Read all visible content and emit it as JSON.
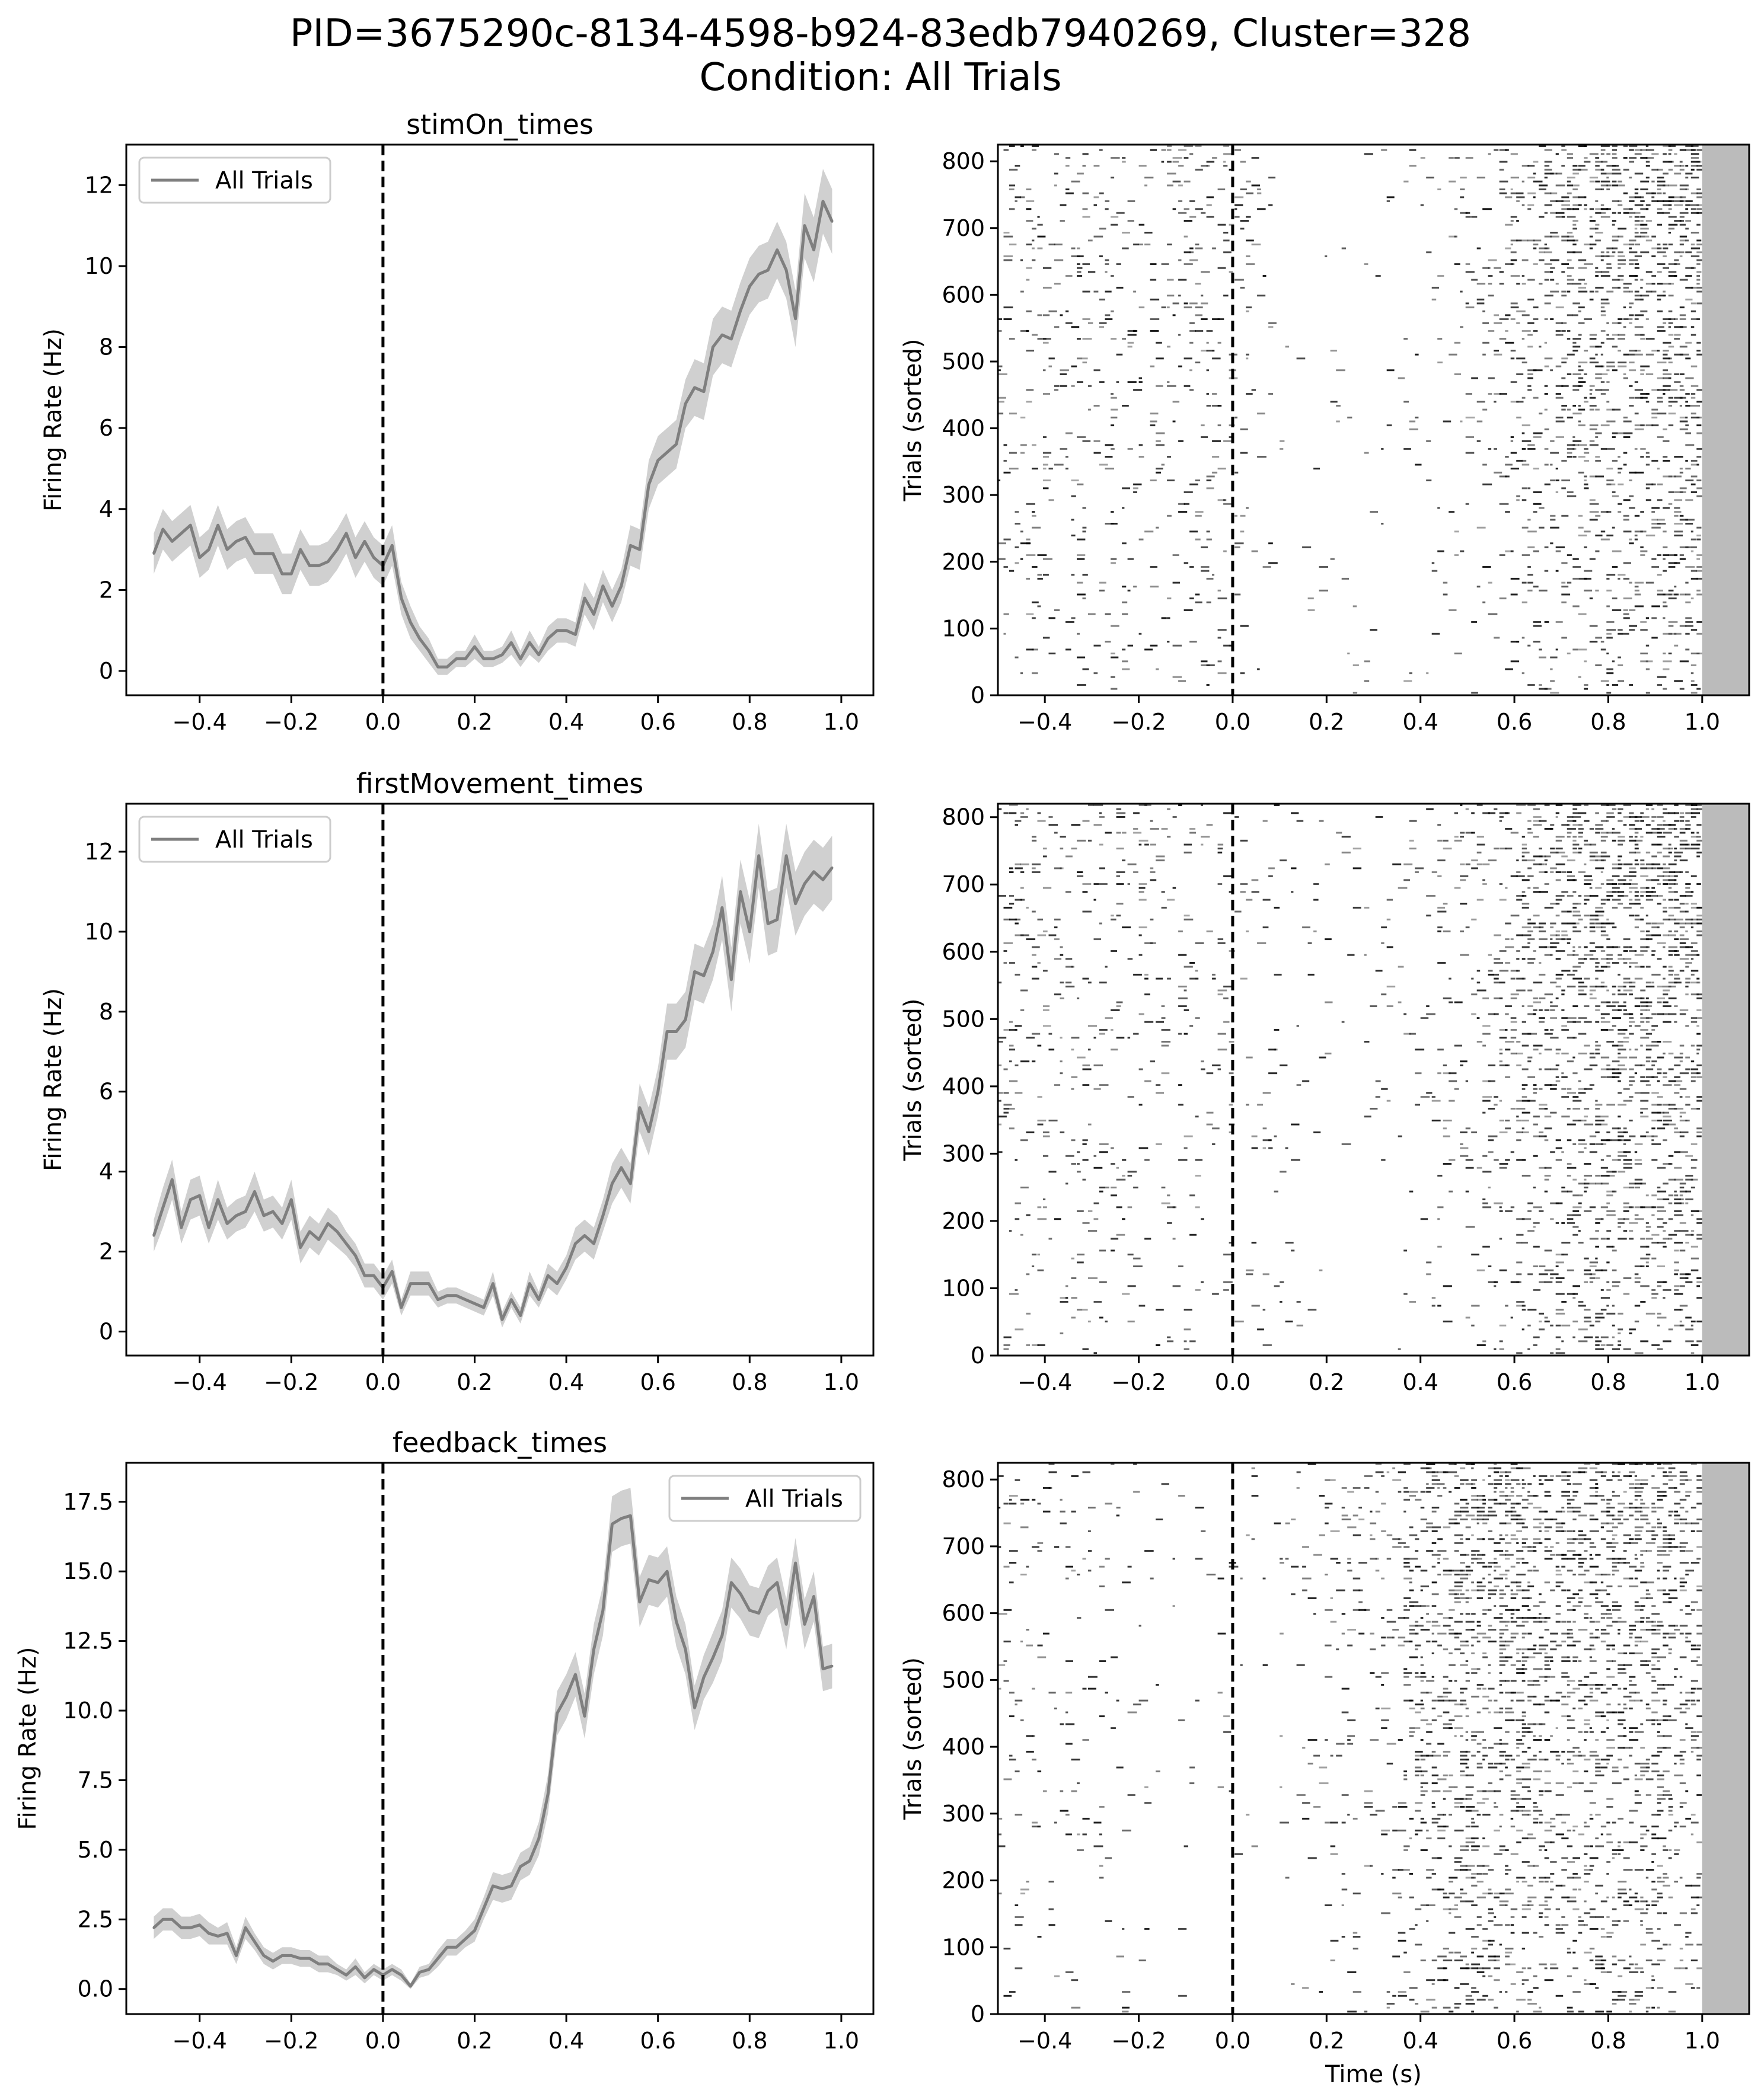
{
  "figure": {
    "title_line1": "PID=3675290c-8134-4598-b924-83edb7940269, Cluster=328",
    "title_line2": "Condition: All Trials"
  },
  "colors": {
    "line": "#7f7f7f",
    "band": "#c8c8c8",
    "raster": "#000000",
    "post_window": "#bbbbbb",
    "event_line": "#000000"
  },
  "chart_data": [
    {
      "type": "line",
      "title": "stimOn_times",
      "ylabel": "Firing Rate (Hz)",
      "xlabel": "",
      "legend": "upper-left",
      "legend_label": "All Trials",
      "xlim": [
        -0.56,
        1.07
      ],
      "ylim": [
        -0.6,
        13.0
      ],
      "xticks": [
        -0.4,
        -0.2,
        0.0,
        0.2,
        0.4,
        0.6,
        0.8,
        1.0
      ],
      "xtick_labels": [
        "−0.4",
        "−0.2",
        "0.0",
        "0.2",
        "0.4",
        "0.6",
        "0.8",
        "1.0"
      ],
      "yticks": [
        0,
        2,
        4,
        6,
        8,
        10,
        12
      ],
      "ytick_labels": [
        "0",
        "2",
        "4",
        "6",
        "8",
        "10",
        "12"
      ],
      "event_line_x": 0.0,
      "series": [
        {
          "name": "All Trials",
          "x": [
            -0.5,
            -0.48,
            -0.46,
            -0.44,
            -0.42,
            -0.4,
            -0.38,
            -0.36,
            -0.34,
            -0.32,
            -0.3,
            -0.28,
            -0.26,
            -0.24,
            -0.22,
            -0.2,
            -0.18,
            -0.16,
            -0.14,
            -0.12,
            -0.1,
            -0.08,
            -0.06,
            -0.04,
            -0.02,
            0.0,
            0.02,
            0.04,
            0.06,
            0.08,
            0.1,
            0.12,
            0.14,
            0.16,
            0.18,
            0.2,
            0.22,
            0.24,
            0.26,
            0.28,
            0.3,
            0.32,
            0.34,
            0.36,
            0.38,
            0.4,
            0.42,
            0.44,
            0.46,
            0.48,
            0.5,
            0.52,
            0.54,
            0.56,
            0.58,
            0.6,
            0.62,
            0.64,
            0.66,
            0.68,
            0.7,
            0.72,
            0.74,
            0.76,
            0.78,
            0.8,
            0.82,
            0.84,
            0.86,
            0.88,
            0.9,
            0.92,
            0.94,
            0.96,
            0.98
          ],
          "y": [
            2.9,
            3.5,
            3.2,
            3.4,
            3.6,
            2.8,
            3.0,
            3.6,
            3.0,
            3.2,
            3.3,
            2.9,
            2.9,
            2.9,
            2.4,
            2.4,
            3.0,
            2.6,
            2.6,
            2.7,
            3.0,
            3.4,
            2.8,
            3.2,
            2.8,
            2.6,
            3.1,
            1.8,
            1.2,
            0.8,
            0.5,
            0.1,
            0.1,
            0.3,
            0.3,
            0.6,
            0.3,
            0.3,
            0.4,
            0.7,
            0.3,
            0.7,
            0.4,
            0.8,
            1.0,
            1.0,
            0.9,
            1.8,
            1.4,
            2.1,
            1.6,
            2.1,
            3.1,
            3.0,
            4.6,
            5.2,
            5.4,
            5.6,
            6.6,
            7.0,
            6.9,
            8.0,
            8.3,
            8.2,
            8.9,
            9.5,
            9.8,
            9.9,
            10.4,
            9.9,
            8.7,
            11.0,
            10.4,
            11.6,
            11.1
          ],
          "err": [
            0.5,
            0.5,
            0.5,
            0.5,
            0.5,
            0.5,
            0.5,
            0.5,
            0.5,
            0.5,
            0.5,
            0.5,
            0.5,
            0.5,
            0.5,
            0.5,
            0.5,
            0.5,
            0.5,
            0.5,
            0.5,
            0.5,
            0.5,
            0.5,
            0.5,
            0.5,
            0.5,
            0.4,
            0.4,
            0.3,
            0.3,
            0.2,
            0.2,
            0.2,
            0.2,
            0.3,
            0.2,
            0.2,
            0.2,
            0.3,
            0.2,
            0.3,
            0.2,
            0.3,
            0.3,
            0.3,
            0.3,
            0.4,
            0.4,
            0.4,
            0.4,
            0.4,
            0.5,
            0.5,
            0.6,
            0.6,
            0.6,
            0.6,
            0.6,
            0.7,
            0.7,
            0.7,
            0.7,
            0.7,
            0.7,
            0.7,
            0.7,
            0.7,
            0.7,
            0.7,
            0.7,
            0.8,
            0.8,
            0.8,
            0.8
          ]
        }
      ]
    },
    {
      "type": "heatmap",
      "title": "",
      "ylabel": "Trials (sorted)",
      "xlabel": "",
      "xlim": [
        -0.5,
        1.1
      ],
      "ylim": [
        0,
        825
      ],
      "xticks": [
        -0.4,
        -0.2,
        0.0,
        0.2,
        0.4,
        0.6,
        0.8,
        1.0
      ],
      "xtick_labels": [
        "−0.4",
        "−0.2",
        "0.0",
        "0.2",
        "0.4",
        "0.6",
        "0.8",
        "1.0"
      ],
      "yticks": [
        0,
        100,
        200,
        300,
        400,
        500,
        600,
        700,
        800
      ],
      "ytick_labels": [
        "0",
        "100",
        "200",
        "300",
        "400",
        "500",
        "600",
        "700",
        "800"
      ],
      "event_line_x": 0.0,
      "post_window_start": 1.0,
      "n_trials": 825,
      "rate_profile_source": 0
    },
    {
      "type": "line",
      "title": "firstMovement_times",
      "ylabel": "Firing Rate (Hz)",
      "xlabel": "",
      "legend": "upper-left",
      "legend_label": "All Trials",
      "xlim": [
        -0.56,
        1.07
      ],
      "ylim": [
        -0.6,
        13.2
      ],
      "xticks": [
        -0.4,
        -0.2,
        0.0,
        0.2,
        0.4,
        0.6,
        0.8,
        1.0
      ],
      "xtick_labels": [
        "−0.4",
        "−0.2",
        "0.0",
        "0.2",
        "0.4",
        "0.6",
        "0.8",
        "1.0"
      ],
      "yticks": [
        0,
        2,
        4,
        6,
        8,
        10,
        12
      ],
      "ytick_labels": [
        "0",
        "2",
        "4",
        "6",
        "8",
        "10",
        "12"
      ],
      "event_line_x": 0.0,
      "series": [
        {
          "name": "All Trials",
          "x": [
            -0.5,
            -0.48,
            -0.46,
            -0.44,
            -0.42,
            -0.4,
            -0.38,
            -0.36,
            -0.34,
            -0.32,
            -0.3,
            -0.28,
            -0.26,
            -0.24,
            -0.22,
            -0.2,
            -0.18,
            -0.16,
            -0.14,
            -0.12,
            -0.1,
            -0.08,
            -0.06,
            -0.04,
            -0.02,
            0.0,
            0.02,
            0.04,
            0.06,
            0.08,
            0.1,
            0.12,
            0.14,
            0.16,
            0.18,
            0.2,
            0.22,
            0.24,
            0.26,
            0.28,
            0.3,
            0.32,
            0.34,
            0.36,
            0.38,
            0.4,
            0.42,
            0.44,
            0.46,
            0.48,
            0.5,
            0.52,
            0.54,
            0.56,
            0.58,
            0.6,
            0.62,
            0.64,
            0.66,
            0.68,
            0.7,
            0.72,
            0.74,
            0.76,
            0.78,
            0.8,
            0.82,
            0.84,
            0.86,
            0.88,
            0.9,
            0.92,
            0.94,
            0.96,
            0.98
          ],
          "y": [
            2.4,
            3.1,
            3.8,
            2.6,
            3.3,
            3.4,
            2.6,
            3.3,
            2.7,
            2.9,
            3.0,
            3.5,
            2.9,
            3.0,
            2.7,
            3.3,
            2.1,
            2.5,
            2.3,
            2.7,
            2.5,
            2.2,
            1.9,
            1.4,
            1.4,
            1.1,
            1.5,
            0.6,
            1.2,
            1.2,
            1.2,
            0.8,
            0.9,
            0.9,
            0.8,
            0.7,
            0.6,
            1.2,
            0.3,
            0.8,
            0.4,
            1.2,
            0.8,
            1.4,
            1.2,
            1.6,
            2.2,
            2.4,
            2.2,
            2.9,
            3.7,
            4.1,
            3.7,
            5.6,
            5.0,
            6.0,
            7.5,
            7.5,
            7.8,
            9.0,
            8.9,
            9.5,
            10.6,
            8.8,
            11.0,
            10.0,
            11.9,
            10.2,
            10.3,
            11.9,
            10.7,
            11.2,
            11.5,
            11.3,
            11.6
          ],
          "err": [
            0.4,
            0.5,
            0.5,
            0.4,
            0.5,
            0.5,
            0.4,
            0.5,
            0.4,
            0.4,
            0.4,
            0.5,
            0.4,
            0.4,
            0.4,
            0.5,
            0.4,
            0.4,
            0.4,
            0.4,
            0.4,
            0.3,
            0.3,
            0.3,
            0.3,
            0.3,
            0.3,
            0.2,
            0.3,
            0.3,
            0.3,
            0.2,
            0.2,
            0.2,
            0.2,
            0.2,
            0.2,
            0.3,
            0.2,
            0.2,
            0.2,
            0.3,
            0.2,
            0.3,
            0.3,
            0.3,
            0.4,
            0.4,
            0.4,
            0.4,
            0.5,
            0.5,
            0.5,
            0.6,
            0.6,
            0.6,
            0.7,
            0.7,
            0.7,
            0.7,
            0.7,
            0.7,
            0.8,
            0.8,
            0.8,
            0.8,
            0.8,
            0.8,
            0.8,
            0.8,
            0.8,
            0.8,
            0.8,
            0.8,
            0.8
          ]
        }
      ]
    },
    {
      "type": "heatmap",
      "title": "",
      "ylabel": "Trials (sorted)",
      "xlabel": "",
      "xlim": [
        -0.5,
        1.1
      ],
      "ylim": [
        0,
        820
      ],
      "xticks": [
        -0.4,
        -0.2,
        0.0,
        0.2,
        0.4,
        0.6,
        0.8,
        1.0
      ],
      "xtick_labels": [
        "−0.4",
        "−0.2",
        "0.0",
        "0.2",
        "0.4",
        "0.6",
        "0.8",
        "1.0"
      ],
      "yticks": [
        0,
        100,
        200,
        300,
        400,
        500,
        600,
        700,
        800
      ],
      "ytick_labels": [
        "0",
        "100",
        "200",
        "300",
        "400",
        "500",
        "600",
        "700",
        "800"
      ],
      "event_line_x": 0.0,
      "post_window_start": 1.0,
      "n_trials": 820,
      "rate_profile_source": 2
    },
    {
      "type": "line",
      "title": "feedback_times",
      "ylabel": "Firing Rate (Hz)",
      "xlabel": "",
      "legend": "upper-right",
      "legend_label": "All Trials",
      "xlim": [
        -0.56,
        1.07
      ],
      "ylim": [
        -0.9,
        18.9
      ],
      "xticks": [
        -0.4,
        -0.2,
        0.0,
        0.2,
        0.4,
        0.6,
        0.8,
        1.0
      ],
      "xtick_labels": [
        "−0.4",
        "−0.2",
        "0.0",
        "0.2",
        "0.4",
        "0.6",
        "0.8",
        "1.0"
      ],
      "yticks": [
        0.0,
        2.5,
        5.0,
        7.5,
        10.0,
        12.5,
        15.0,
        17.5
      ],
      "ytick_labels": [
        "0.0",
        "2.5",
        "5.0",
        "7.5",
        "10.0",
        "12.5",
        "15.0",
        "17.5"
      ],
      "event_line_x": 0.0,
      "series": [
        {
          "name": "All Trials",
          "x": [
            -0.5,
            -0.48,
            -0.46,
            -0.44,
            -0.42,
            -0.4,
            -0.38,
            -0.36,
            -0.34,
            -0.32,
            -0.3,
            -0.28,
            -0.26,
            -0.24,
            -0.22,
            -0.2,
            -0.18,
            -0.16,
            -0.14,
            -0.12,
            -0.1,
            -0.08,
            -0.06,
            -0.04,
            -0.02,
            0.0,
            0.02,
            0.04,
            0.06,
            0.08,
            0.1,
            0.12,
            0.14,
            0.16,
            0.18,
            0.2,
            0.22,
            0.24,
            0.26,
            0.28,
            0.3,
            0.32,
            0.34,
            0.36,
            0.38,
            0.4,
            0.42,
            0.44,
            0.46,
            0.48,
            0.5,
            0.52,
            0.54,
            0.56,
            0.58,
            0.6,
            0.62,
            0.64,
            0.66,
            0.68,
            0.7,
            0.72,
            0.74,
            0.76,
            0.78,
            0.8,
            0.82,
            0.84,
            0.86,
            0.88,
            0.9,
            0.92,
            0.94,
            0.96,
            0.98
          ],
          "y": [
            2.2,
            2.5,
            2.5,
            2.2,
            2.2,
            2.3,
            2.0,
            1.9,
            2.0,
            1.2,
            2.2,
            1.7,
            1.2,
            1.0,
            1.2,
            1.2,
            1.1,
            1.1,
            0.9,
            0.9,
            0.7,
            0.5,
            0.8,
            0.4,
            0.7,
            0.5,
            0.7,
            0.5,
            0.1,
            0.6,
            0.7,
            1.1,
            1.5,
            1.5,
            1.8,
            2.1,
            2.9,
            3.7,
            3.6,
            3.7,
            4.4,
            4.6,
            5.4,
            7.0,
            9.9,
            10.5,
            11.3,
            9.8,
            12.2,
            13.6,
            16.7,
            16.9,
            17.0,
            13.9,
            14.7,
            14.6,
            15.0,
            13.2,
            12.2,
            10.1,
            11.2,
            11.9,
            12.7,
            14.6,
            14.2,
            13.6,
            13.5,
            14.3,
            14.6,
            13.1,
            15.3,
            13.1,
            14.1,
            11.5,
            11.6
          ],
          "err": [
            0.4,
            0.4,
            0.4,
            0.4,
            0.4,
            0.4,
            0.4,
            0.3,
            0.4,
            0.3,
            0.4,
            0.3,
            0.3,
            0.3,
            0.3,
            0.3,
            0.3,
            0.3,
            0.3,
            0.3,
            0.2,
            0.2,
            0.3,
            0.2,
            0.2,
            0.2,
            0.2,
            0.2,
            0.1,
            0.2,
            0.2,
            0.3,
            0.3,
            0.3,
            0.3,
            0.4,
            0.4,
            0.5,
            0.5,
            0.5,
            0.5,
            0.5,
            0.6,
            0.7,
            0.8,
            0.8,
            0.8,
            0.8,
            0.9,
            0.9,
            1.0,
            1.0,
            1.0,
            0.9,
            0.9,
            0.9,
            0.9,
            0.9,
            0.9,
            0.8,
            0.8,
            0.9,
            0.9,
            0.9,
            0.9,
            0.9,
            0.9,
            0.9,
            0.9,
            0.9,
            0.9,
            0.9,
            0.9,
            0.8,
            0.8
          ]
        }
      ]
    },
    {
      "type": "heatmap",
      "title": "",
      "ylabel": "Trials (sorted)",
      "xlabel": "Time (s)",
      "xlim": [
        -0.5,
        1.1
      ],
      "ylim": [
        0,
        825
      ],
      "xticks": [
        -0.4,
        -0.2,
        0.0,
        0.2,
        0.4,
        0.6,
        0.8,
        1.0
      ],
      "xtick_labels": [
        "−0.4",
        "−0.2",
        "0.0",
        "0.2",
        "0.4",
        "0.6",
        "0.8",
        "1.0"
      ],
      "yticks": [
        0,
        100,
        200,
        300,
        400,
        500,
        600,
        700,
        800
      ],
      "ytick_labels": [
        "0",
        "100",
        "200",
        "300",
        "400",
        "500",
        "600",
        "700",
        "800"
      ],
      "event_line_x": 0.0,
      "post_window_start": 1.0,
      "n_trials": 825,
      "rate_profile_source": 4
    }
  ]
}
